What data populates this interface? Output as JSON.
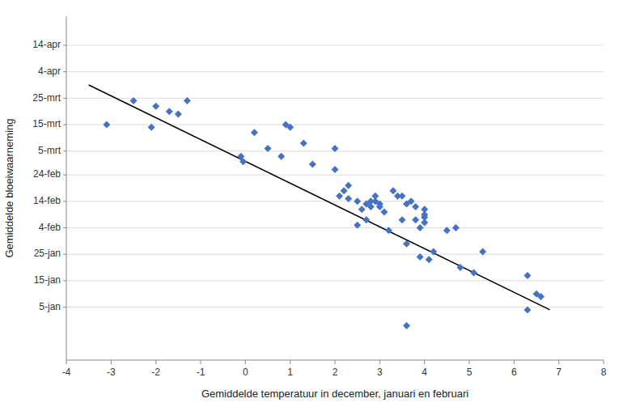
{
  "chart_data": {
    "type": "scatter",
    "xlabel": "Gemiddelde temperatuur in december, januari en februari",
    "ylabel": "Gemiddelde bloeiwaarneming",
    "xlim": [
      -4,
      8
    ],
    "ylim": [
      -15,
      115
    ],
    "xticks": [
      -4,
      -3,
      -2,
      -1,
      0,
      1,
      2,
      3,
      4,
      5,
      6,
      7,
      8
    ],
    "yticks": [
      {
        "value": 5,
        "label": "5-jan"
      },
      {
        "value": 15,
        "label": "15-jan"
      },
      {
        "value": 25,
        "label": "25-jan"
      },
      {
        "value": 35,
        "label": "4-feb"
      },
      {
        "value": 45,
        "label": "14-feb"
      },
      {
        "value": 55,
        "label": "24-feb"
      },
      {
        "value": 64,
        "label": "5-mrt"
      },
      {
        "value": 74,
        "label": "15-mrt"
      },
      {
        "value": 84,
        "label": "25-mrt"
      },
      {
        "value": 94,
        "label": "4-apr"
      },
      {
        "value": 104,
        "label": "14-apr"
      }
    ],
    "grid": "y",
    "series": [
      {
        "type": "scatter",
        "color": "#4472C4",
        "marker": "diamond",
        "x": [
          -3.1,
          -2.5,
          -2.1,
          -2.0,
          -1.7,
          -1.5,
          -1.3,
          -0.1,
          -0.05,
          0.2,
          0.5,
          0.8,
          1.0,
          1.3,
          1.5,
          2.0,
          2.0,
          2.1,
          2.2,
          2.3,
          2.3,
          2.5,
          2.5,
          2.6,
          2.7,
          2.7,
          2.8,
          2.8,
          2.9,
          2.9,
          3.0,
          3.0,
          3.1,
          3.2,
          3.3,
          3.4,
          3.5,
          3.5,
          3.6,
          3.6,
          3.7,
          3.8,
          3.8,
          3.9,
          3.9,
          4.0,
          4.0,
          4.0,
          4.0,
          4.1,
          4.2,
          4.5,
          4.7,
          4.8,
          5.1,
          5.3,
          6.3,
          6.3,
          6.5,
          6.6,
          3.6,
          0.9
        ],
        "values": [
          74,
          83,
          73,
          81,
          79,
          78,
          83,
          62,
          60,
          71,
          65,
          62,
          73,
          67,
          59,
          57,
          65,
          47,
          49,
          46,
          51,
          45,
          36,
          42,
          44,
          38,
          45,
          43,
          45,
          47,
          44,
          43,
          41,
          34,
          49,
          47,
          47,
          38,
          29,
          44,
          45,
          43,
          38,
          35,
          24,
          42,
          39,
          37,
          40,
          23,
          26,
          34,
          35,
          20,
          18,
          26,
          17,
          4,
          10,
          9,
          -2,
          74
        ]
      },
      {
        "type": "line",
        "color": "#000000",
        "x": [
          -3.5,
          6.8
        ],
        "values": [
          89,
          4
        ]
      }
    ]
  }
}
